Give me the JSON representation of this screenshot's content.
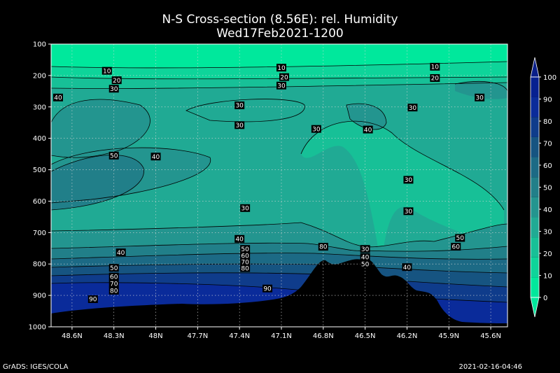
{
  "chart_data": {
    "type": "heatmap",
    "title": "N-S Cross-section (8.56E): rel. Humidity",
    "subtitle": "Wed17Feb2021-1200",
    "x_ticks": [
      "48.6N",
      "48.3N",
      "48N",
      "47.7N",
      "47.4N",
      "47.1N",
      "46.8N",
      "46.5N",
      "46.2N",
      "45.9N",
      "45.6N"
    ],
    "x_tick_values": [
      48.6,
      48.3,
      48.0,
      47.7,
      47.4,
      47.1,
      46.8,
      46.5,
      46.2,
      45.9,
      45.6
    ],
    "xlim": [
      48.75,
      45.48
    ],
    "y_ticks": [
      "100",
      "200",
      "300",
      "400",
      "500",
      "600",
      "700",
      "800",
      "900",
      "1000"
    ],
    "y_tick_values": [
      100,
      200,
      300,
      400,
      500,
      600,
      700,
      800,
      900,
      1000
    ],
    "ylim": [
      100,
      1000
    ],
    "grid": true,
    "colorbar": {
      "levels": [
        0,
        10,
        20,
        30,
        40,
        50,
        60,
        70,
        80,
        90,
        100
      ],
      "labels": [
        "0",
        "10",
        "20",
        "30",
        "40",
        "50",
        "60",
        "70",
        "80",
        "90",
        "100"
      ],
      "colors": [
        "#00e89c",
        "#0ed49a",
        "#17c097",
        "#20aa94",
        "#23958f",
        "#217f89",
        "#1c6a85",
        "#165481",
        "#0f3c8b",
        "#0a2b9a",
        "#062090"
      ]
    },
    "contour_labels": [
      {
        "text": "10",
        "lat": 48.35,
        "p": 185
      },
      {
        "text": "10",
        "lat": 47.1,
        "p": 175
      },
      {
        "text": "10",
        "lat": 46.0,
        "p": 172
      },
      {
        "text": "20",
        "lat": 48.28,
        "p": 215
      },
      {
        "text": "20",
        "lat": 47.08,
        "p": 205
      },
      {
        "text": "20",
        "lat": 46.0,
        "p": 208
      },
      {
        "text": "30",
        "lat": 48.3,
        "p": 242
      },
      {
        "text": "30",
        "lat": 47.1,
        "p": 232
      },
      {
        "text": "30",
        "lat": 47.4,
        "p": 295
      },
      {
        "text": "30",
        "lat": 47.4,
        "p": 358
      },
      {
        "text": "30",
        "lat": 46.85,
        "p": 370
      },
      {
        "text": "30",
        "lat": 46.16,
        "p": 302
      },
      {
        "text": "30",
        "lat": 45.68,
        "p": 270
      },
      {
        "text": "30",
        "lat": 46.19,
        "p": 532
      },
      {
        "text": "30",
        "lat": 47.36,
        "p": 622
      },
      {
        "text": "30",
        "lat": 46.19,
        "p": 632
      },
      {
        "text": "30",
        "lat": 46.5,
        "p": 752
      },
      {
        "text": "40",
        "lat": 48.7,
        "p": 270
      },
      {
        "text": "40",
        "lat": 48.0,
        "p": 458
      },
      {
        "text": "40",
        "lat": 46.48,
        "p": 372
      },
      {
        "text": "40",
        "lat": 47.4,
        "p": 720
      },
      {
        "text": "40",
        "lat": 48.25,
        "p": 763
      },
      {
        "text": "40",
        "lat": 46.5,
        "p": 778
      },
      {
        "text": "40",
        "lat": 46.2,
        "p": 810
      },
      {
        "text": "50",
        "lat": 48.3,
        "p": 455
      },
      {
        "text": "50",
        "lat": 47.36,
        "p": 752
      },
      {
        "text": "50",
        "lat": 48.3,
        "p": 812
      },
      {
        "text": "50",
        "lat": 45.82,
        "p": 717
      },
      {
        "text": "50",
        "lat": 46.5,
        "p": 800
      },
      {
        "text": "60",
        "lat": 47.36,
        "p": 773
      },
      {
        "text": "60",
        "lat": 48.3,
        "p": 840
      },
      {
        "text": "60",
        "lat": 45.85,
        "p": 745
      },
      {
        "text": "70",
        "lat": 47.36,
        "p": 793
      },
      {
        "text": "70",
        "lat": 48.3,
        "p": 862
      },
      {
        "text": "80",
        "lat": 47.36,
        "p": 813
      },
      {
        "text": "80",
        "lat": 48.3,
        "p": 885
      },
      {
        "text": "80",
        "lat": 46.8,
        "p": 745
      },
      {
        "text": "90",
        "lat": 48.45,
        "p": 912
      },
      {
        "text": "90",
        "lat": 47.2,
        "p": 878
      }
    ]
  },
  "footer": {
    "left": "GrADS: IGES/COLA",
    "right": "2021-02-16-04:46"
  }
}
